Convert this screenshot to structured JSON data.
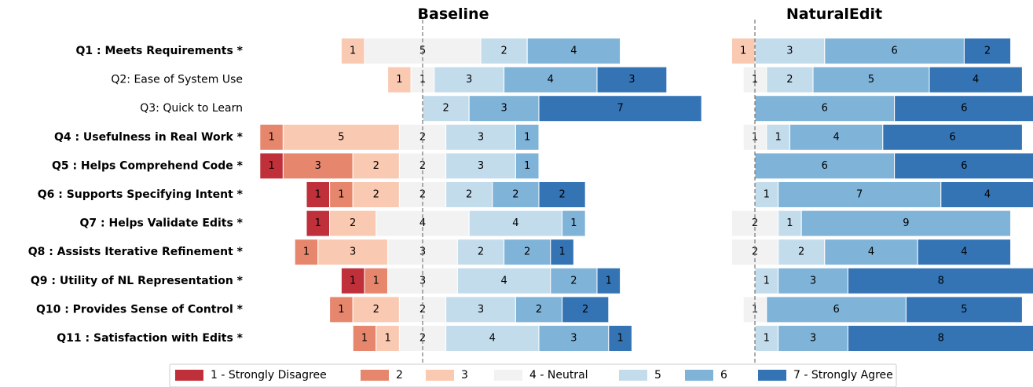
{
  "chart_data": {
    "type": "bar",
    "subtype": "diverging-stacked-likert",
    "panels": [
      "Baseline",
      "NaturalEdit"
    ],
    "questions": [
      {
        "label": "Q1 :  Meets Requirements *",
        "bold": true
      },
      {
        "label": "Q2: Ease of System Use",
        "bold": false
      },
      {
        "label": "Q3: Quick to Learn",
        "bold": false
      },
      {
        "label": "Q4 :  Usefulness in Real Work *",
        "bold": true
      },
      {
        "label": "Q5 :  Helps Comprehend Code *",
        "bold": true
      },
      {
        "label": "Q6 :  Supports Specifying Intent *",
        "bold": true
      },
      {
        "label": "Q7 :  Helps Validate Edits *",
        "bold": true
      },
      {
        "label": "Q8 :  Assists Iterative Refinement *",
        "bold": true
      },
      {
        "label": "Q9 :  Utility of NL Representation *",
        "bold": true
      },
      {
        "label": "Q10 :  Provides Sense of Control *",
        "bold": true
      },
      {
        "label": "Q11 :  Satisfaction with Edits *",
        "bold": true
      }
    ],
    "scale": [
      "1 - Strongly Disagree",
      "2",
      "3",
      "4 - Neutral",
      "5",
      "6",
      "7 - Strongly Agree"
    ],
    "colors": [
      "#c0303a",
      "#e6876d",
      "#f9c9b2",
      "#f2f2f2",
      "#c3dcec",
      "#7fb3d8",
      "#3474b5"
    ],
    "counts": {
      "Baseline": [
        [
          0,
          0,
          1,
          5,
          2,
          4,
          0
        ],
        [
          0,
          0,
          1,
          1,
          3,
          4,
          3
        ],
        [
          0,
          0,
          0,
          0,
          2,
          3,
          7
        ],
        [
          0,
          1,
          5,
          2,
          3,
          1,
          0
        ],
        [
          1,
          3,
          2,
          2,
          3,
          1,
          0
        ],
        [
          1,
          1,
          2,
          2,
          2,
          2,
          2
        ],
        [
          1,
          0,
          2,
          4,
          4,
          1,
          0
        ],
        [
          0,
          1,
          3,
          3,
          2,
          2,
          1
        ],
        [
          1,
          1,
          0,
          3,
          4,
          2,
          1
        ],
        [
          0,
          1,
          2,
          2,
          3,
          2,
          2
        ],
        [
          0,
          1,
          1,
          2,
          4,
          3,
          1
        ]
      ],
      "NaturalEdit": [
        [
          0,
          0,
          1,
          0,
          3,
          6,
          2
        ],
        [
          0,
          0,
          0,
          1,
          2,
          5,
          4
        ],
        [
          0,
          0,
          0,
          0,
          0,
          6,
          6
        ],
        [
          0,
          0,
          0,
          1,
          1,
          4,
          6
        ],
        [
          0,
          0,
          0,
          0,
          0,
          6,
          6
        ],
        [
          0,
          0,
          0,
          0,
          1,
          7,
          4
        ],
        [
          0,
          0,
          0,
          2,
          1,
          9,
          0
        ],
        [
          0,
          0,
          0,
          2,
          2,
          4,
          4
        ],
        [
          0,
          0,
          0,
          0,
          1,
          3,
          8
        ],
        [
          0,
          0,
          0,
          1,
          0,
          6,
          5
        ],
        [
          0,
          0,
          0,
          0,
          1,
          3,
          8
        ]
      ]
    },
    "center_line": "neutral midpoint (dashed)"
  }
}
